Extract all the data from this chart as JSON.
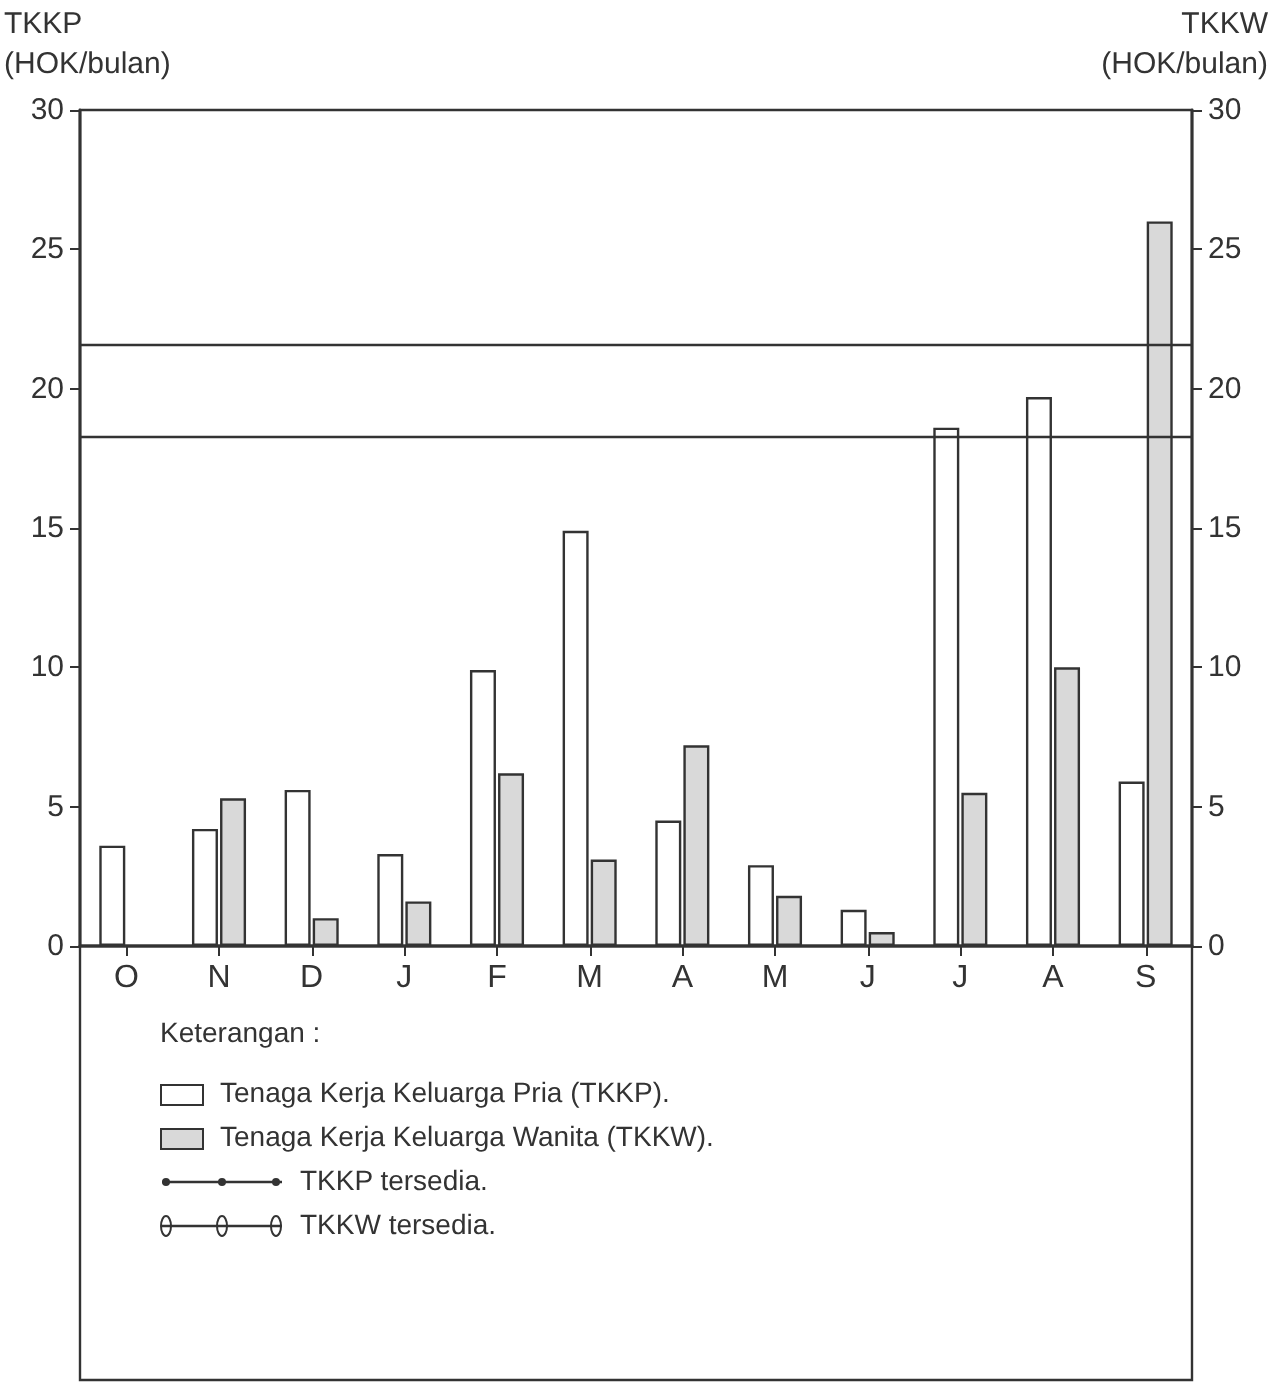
{
  "chart_data": {
    "type": "bar",
    "ylabel": "TKKP\n(HOK/bulan)",
    "y2label": "TKKW\n(HOK/bulan)",
    "legend_title": "Keterangan :",
    "categories": [
      "O",
      "N",
      "D",
      "J",
      "F",
      "M",
      "A",
      "M",
      "J",
      "J",
      "A",
      "S"
    ],
    "series": [
      {
        "name": "Tenaga Kerja Keluarga Pria (TKKP).",
        "color": "#ffffff",
        "values": [
          3.6,
          4.2,
          5.6,
          3.3,
          9.9,
          14.9,
          4.5,
          2.9,
          1.3,
          18.6,
          19.7,
          5.9
        ]
      },
      {
        "name": "Tenaga Kerja Keluarga Wanita (TKKW).",
        "color": "#d9d9d9",
        "values": [
          null,
          5.3,
          1.0,
          1.6,
          6.2,
          3.1,
          7.2,
          1.8,
          0.5,
          5.5,
          10.0,
          26.0
        ]
      }
    ],
    "ref_lines": [
      {
        "axis": "y",
        "value": 21.6,
        "label": "TKKP tersedia.",
        "line_style": "solid"
      },
      {
        "axis": "y2",
        "value": 18.3,
        "label": "TKKW tersedia.",
        "line_style": "solid"
      }
    ],
    "ylim": [
      0,
      30
    ],
    "yticks": [
      0,
      5,
      10,
      15,
      20,
      25,
      30
    ],
    "y2lim": [
      0,
      30
    ],
    "y2ticks": [
      0,
      5,
      10,
      15,
      20,
      25,
      30
    ],
    "grid": false,
    "legend": "bottom"
  }
}
